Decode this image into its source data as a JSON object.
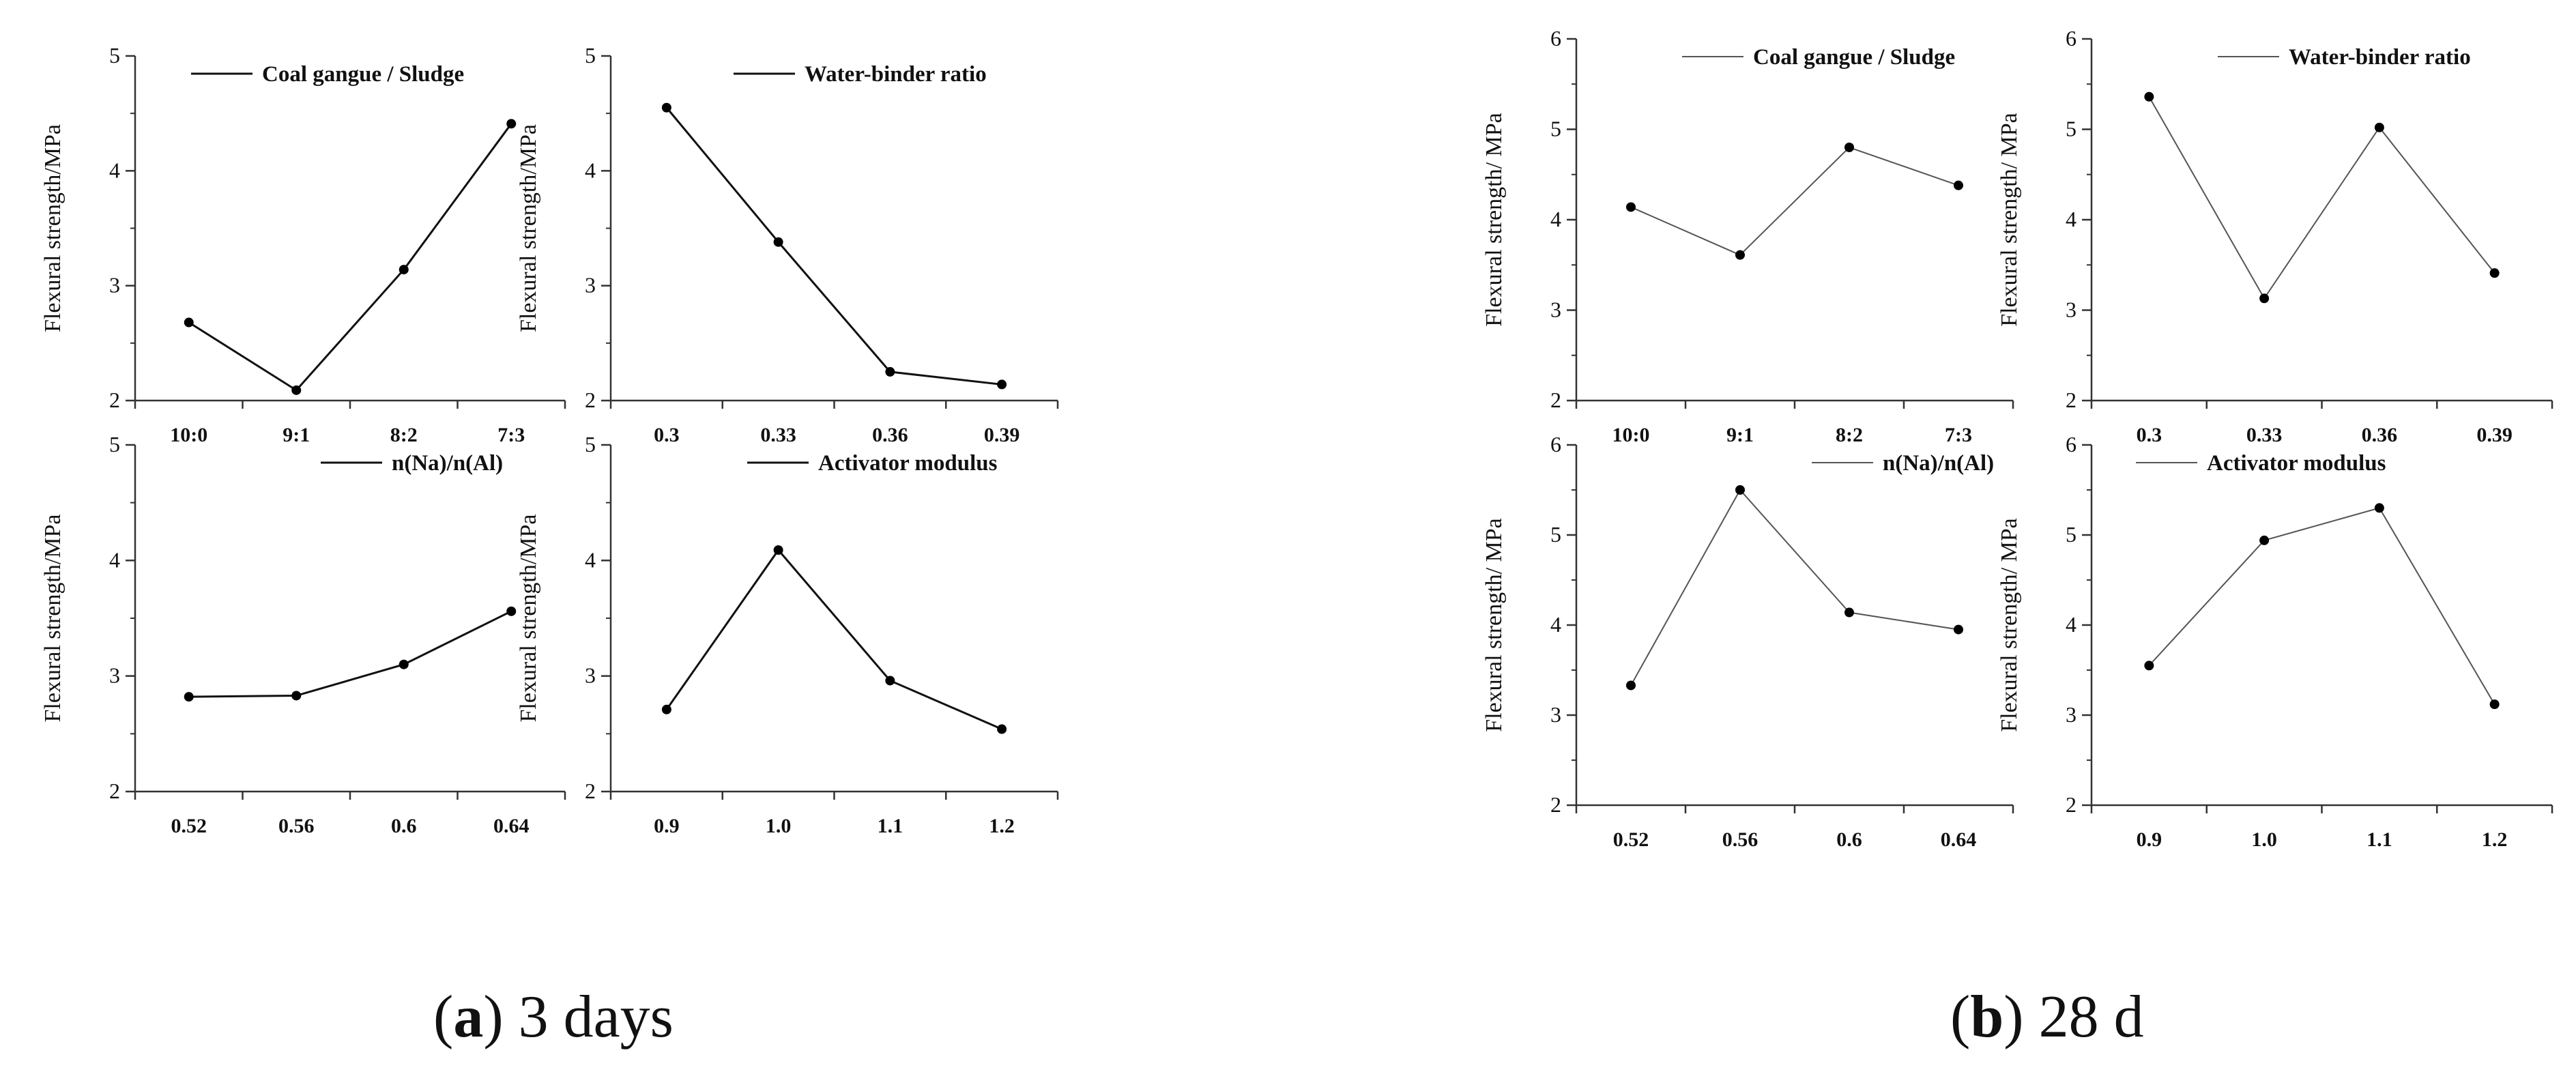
{
  "panels": [
    {
      "id": "a",
      "caption_letter": "a",
      "caption_text": "3 days",
      "chart_data": [
        {
          "type": "line",
          "legend": "Coal gangue / Sludge",
          "ylabel": "Flexural strength/MPa",
          "ylim": [
            2,
            5
          ],
          "yticks": [
            "2",
            "3",
            "4",
            "5"
          ],
          "categories": [
            "10:0",
            "9:1",
            "8:2",
            "7:3"
          ],
          "values": [
            2.68,
            2.09,
            3.14,
            4.41
          ],
          "legend_position": "top-right"
        },
        {
          "type": "line",
          "legend": "Water-binder ratio",
          "ylabel": "Flexural strength/MPa",
          "ylim": [
            2,
            5
          ],
          "yticks": [
            "2",
            "3",
            "4",
            "5"
          ],
          "categories": [
            "0.3",
            "0.33",
            "0.36",
            "0.39"
          ],
          "values": [
            4.55,
            3.38,
            2.25,
            2.14
          ],
          "legend_position": "top-right"
        },
        {
          "type": "line",
          "legend": "n(Na)/n(Al)",
          "ylabel": "Flexural strength/MPa",
          "ylim": [
            2,
            5
          ],
          "yticks": [
            "2",
            "3",
            "4",
            "5"
          ],
          "categories": [
            "0.52",
            "0.56",
            "0.6",
            "0.64"
          ],
          "values": [
            2.82,
            2.83,
            3.1,
            3.56
          ],
          "legend_position": "top-right"
        },
        {
          "type": "line",
          "legend": "Activator modulus",
          "ylabel": "Flexural strength/MPa",
          "ylim": [
            2,
            5
          ],
          "yticks": [
            "2",
            "3",
            "4",
            "5"
          ],
          "categories": [
            "0.9",
            "1.0",
            "1.1",
            "1.2"
          ],
          "values": [
            2.71,
            4.09,
            2.96,
            2.54
          ],
          "legend_position": "top-right"
        }
      ]
    },
    {
      "id": "b",
      "caption_letter": "b",
      "caption_text": "28 d",
      "chart_data": [
        {
          "type": "line",
          "legend": "Coal gangue / Sludge",
          "ylabel": "Flexural strength/ MPa",
          "ylim": [
            2,
            6
          ],
          "yticks": [
            "2",
            "3",
            "4",
            "5",
            "6"
          ],
          "categories": [
            "10:0",
            "9:1",
            "8:2",
            "7:3"
          ],
          "values": [
            4.14,
            3.61,
            4.8,
            4.38
          ],
          "legend_position": "top-right"
        },
        {
          "type": "line",
          "legend": "Water-binder ratio",
          "ylabel": "Flexural strength/ MPa",
          "ylim": [
            2,
            6
          ],
          "yticks": [
            "2",
            "3",
            "4",
            "5",
            "6"
          ],
          "categories": [
            "0.3",
            "0.33",
            "0.36",
            "0.39"
          ],
          "values": [
            5.36,
            3.13,
            5.02,
            3.41
          ],
          "legend_position": "top-right"
        },
        {
          "type": "line",
          "legend": "n(Na)/n(Al)",
          "ylabel": "Flexural strength/ MPa",
          "ylim": [
            2,
            6
          ],
          "yticks": [
            "2",
            "3",
            "4",
            "5",
            "6"
          ],
          "categories": [
            "0.52",
            "0.56",
            "0.6",
            "0.64"
          ],
          "values": [
            3.33,
            5.5,
            4.14,
            3.95
          ],
          "legend_position": "top-right"
        },
        {
          "type": "line",
          "legend": "Activator modulus",
          "ylabel": "Flexural strength/ MPa",
          "ylim": [
            2,
            6
          ],
          "yticks": [
            "2",
            "3",
            "4",
            "5",
            "6"
          ],
          "categories": [
            "0.9",
            "1.0",
            "1.1",
            "1.2"
          ],
          "values": [
            3.55,
            4.94,
            5.3,
            3.12
          ],
          "legend_position": "top-right"
        }
      ]
    }
  ]
}
